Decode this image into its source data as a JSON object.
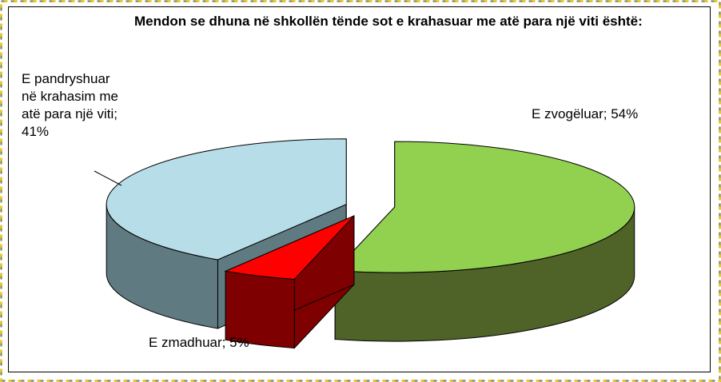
{
  "chart_data": {
    "type": "pie",
    "title": "Mendon se dhuna në shkollën tënde sot e krahasuar me atë para një viti është:",
    "values": [
      54,
      5,
      41
    ],
    "value_labels": [
      "E zvogëluar; 54%",
      "E zmadhuar; 5%",
      "E pandryshuar në krahasim me atë para një viti; 41%"
    ],
    "colors": [
      "#92d050",
      "#ff0000",
      "#b7dde8"
    ],
    "side_colors": [
      "#4f6228",
      "#7f0000",
      "#5f7a80"
    ]
  }
}
